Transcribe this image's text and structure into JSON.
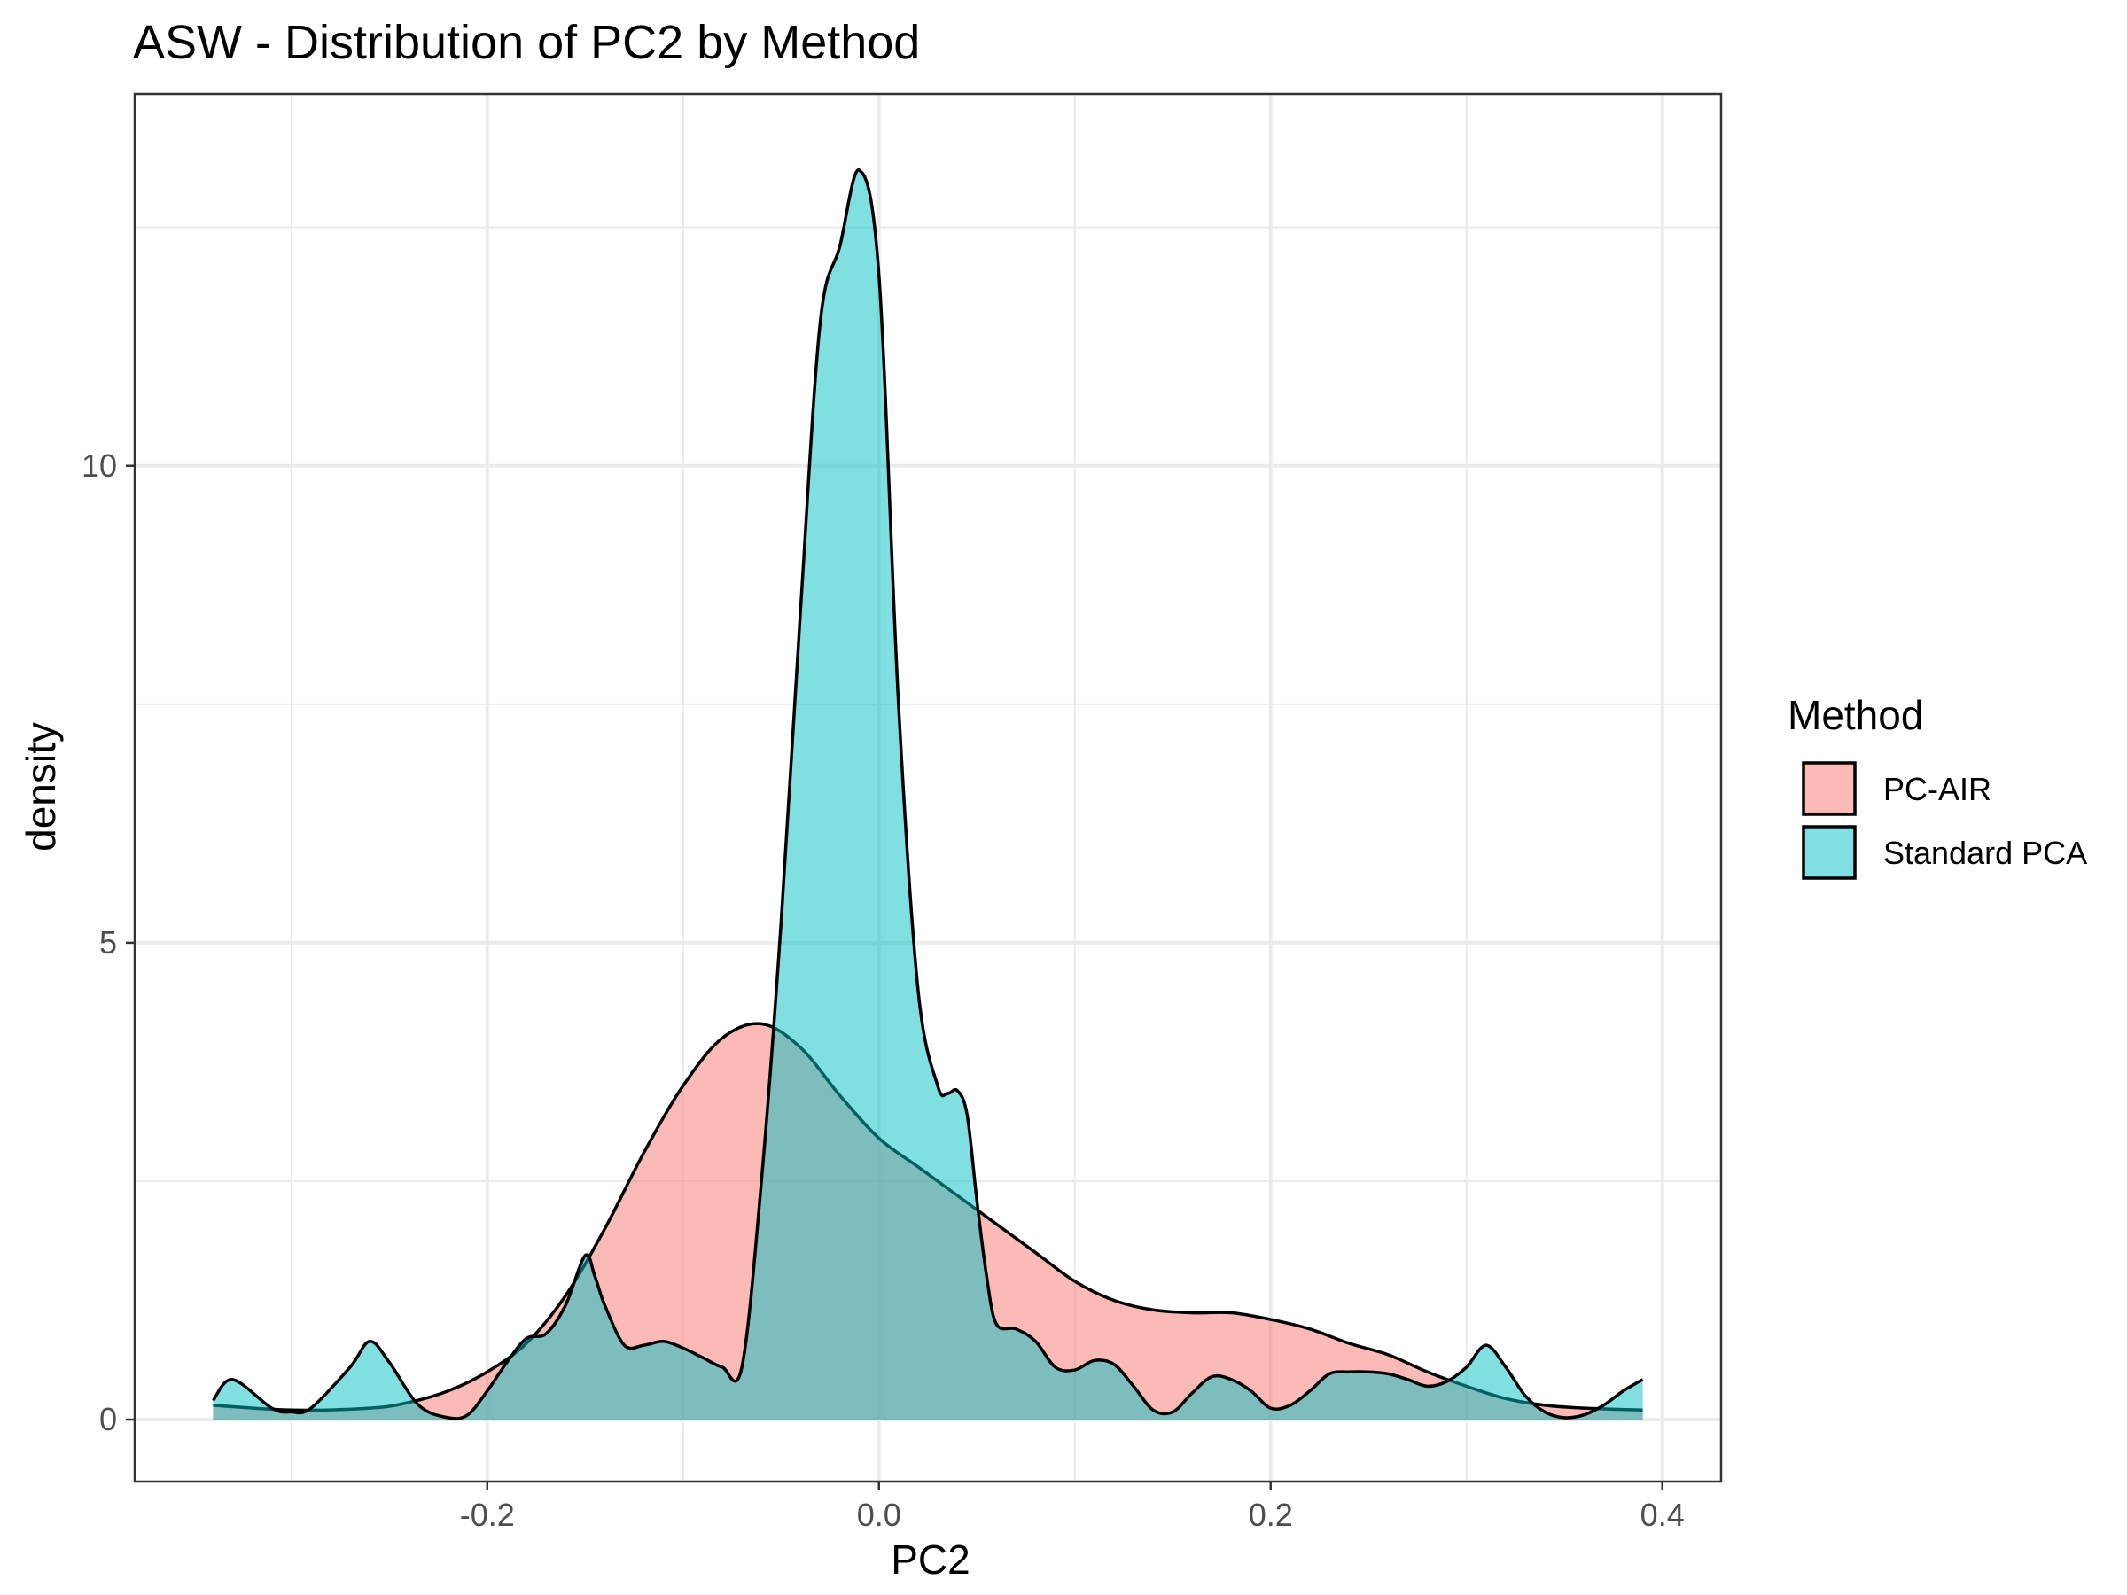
{
  "chart_data": {
    "type": "area",
    "title": "ASW - Distribution of PC2 by Method",
    "xlabel": "PC2",
    "ylabel": "density",
    "xlim": [
      -0.38,
      0.43
    ],
    "ylim": [
      -0.65,
      13.9
    ],
    "x_ticks": [
      -0.2,
      0.0,
      0.2,
      0.4
    ],
    "x_tick_labels": [
      "-0.2",
      "0.0",
      "0.2",
      "0.4"
    ],
    "y_ticks": [
      0,
      5,
      10
    ],
    "y_tick_labels": [
      "0",
      "5",
      "10"
    ],
    "grid": true,
    "legend": {
      "title": "Method",
      "position": "right"
    },
    "series": [
      {
        "name": "PC-AIR",
        "color": "#F8766D",
        "x": [
          -0.34,
          -0.3,
          -0.26,
          -0.24,
          -0.22,
          -0.2,
          -0.18,
          -0.16,
          -0.14,
          -0.12,
          -0.1,
          -0.08,
          -0.06,
          -0.04,
          -0.02,
          0.0,
          0.02,
          0.04,
          0.06,
          0.08,
          0.1,
          0.12,
          0.14,
          0.16,
          0.18,
          0.2,
          0.22,
          0.24,
          0.26,
          0.28,
          0.3,
          0.32,
          0.34,
          0.36,
          0.39
        ],
        "y": [
          0.15,
          0.1,
          0.12,
          0.18,
          0.3,
          0.5,
          0.8,
          1.3,
          2.0,
          2.8,
          3.5,
          4.0,
          4.15,
          3.9,
          3.4,
          2.95,
          2.65,
          2.35,
          2.05,
          1.75,
          1.45,
          1.25,
          1.15,
          1.12,
          1.12,
          1.05,
          0.95,
          0.8,
          0.68,
          0.5,
          0.35,
          0.22,
          0.15,
          0.12,
          0.1
        ]
      },
      {
        "name": "Standard PCA",
        "color": "#00BFC4",
        "x": [
          -0.34,
          -0.33,
          -0.31,
          -0.3,
          -0.29,
          -0.27,
          -0.26,
          -0.25,
          -0.235,
          -0.22,
          -0.21,
          -0.2,
          -0.19,
          -0.18,
          -0.17,
          -0.16,
          -0.15,
          -0.145,
          -0.14,
          -0.13,
          -0.12,
          -0.11,
          -0.1,
          -0.09,
          -0.08,
          -0.07,
          -0.06,
          -0.05,
          -0.04,
          -0.03,
          -0.02,
          -0.01,
          0.0,
          0.01,
          0.02,
          0.03,
          0.035,
          0.04,
          0.045,
          0.05,
          0.055,
          0.06,
          0.07,
          0.08,
          0.09,
          0.1,
          0.11,
          0.12,
          0.13,
          0.14,
          0.15,
          0.16,
          0.17,
          0.18,
          0.19,
          0.2,
          0.21,
          0.22,
          0.23,
          0.24,
          0.25,
          0.26,
          0.27,
          0.28,
          0.29,
          0.3,
          0.31,
          0.32,
          0.33,
          0.34,
          0.35,
          0.36,
          0.37,
          0.38,
          0.39
        ],
        "y": [
          0.2,
          0.42,
          0.12,
          0.08,
          0.12,
          0.55,
          0.82,
          0.6,
          0.15,
          0.02,
          0.05,
          0.3,
          0.6,
          0.85,
          0.9,
          1.2,
          1.72,
          1.5,
          1.2,
          0.78,
          0.78,
          0.82,
          0.75,
          0.65,
          0.55,
          0.55,
          2.5,
          5.2,
          8.5,
          11.5,
          12.3,
          13.1,
          12.0,
          7.5,
          4.5,
          3.5,
          3.42,
          3.45,
          3.2,
          2.3,
          1.5,
          1.0,
          0.95,
          0.82,
          0.55,
          0.52,
          0.62,
          0.58,
          0.35,
          0.1,
          0.08,
          0.28,
          0.45,
          0.42,
          0.3,
          0.12,
          0.15,
          0.3,
          0.48,
          0.5,
          0.5,
          0.48,
          0.42,
          0.35,
          0.4,
          0.55,
          0.78,
          0.55,
          0.25,
          0.08,
          0.02,
          0.05,
          0.15,
          0.3,
          0.42
        ]
      }
    ]
  }
}
